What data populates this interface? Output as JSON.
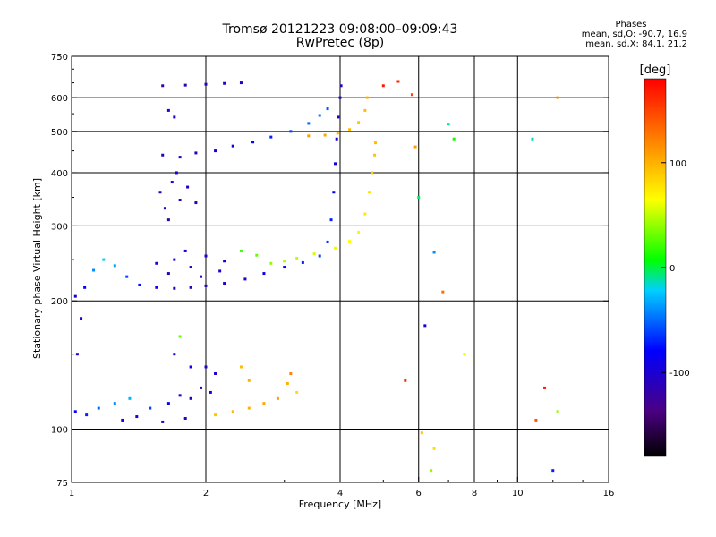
{
  "title": "Tromsø 20121223 09:08:00–09:09:43",
  "subtitle": "RwPretec (8p)",
  "phase_box": {
    "heading": "Phases",
    "line1": "mean, sd,O: -90.7, 16.9",
    "line2": "mean, sd,X:  84.1, 21.2"
  },
  "colorbar": {
    "unit": "[deg]",
    "ticks": [
      {
        "value": 100,
        "label": "100"
      },
      {
        "value": 0,
        "label": "0"
      },
      {
        "value": -100,
        "label": "-100"
      }
    ],
    "range": [
      -180,
      180
    ]
  },
  "chart_data": {
    "type": "scatter",
    "title": "Tromsø 20121223 09:08:00–09:09:43",
    "xlabel": "Frequency [MHz]",
    "ylabel": "Stationary phase Virtual Height [km]",
    "xscale": "log",
    "xlim": [
      1,
      16
    ],
    "ylim": [
      75,
      750
    ],
    "x_ticks": [
      {
        "value": 1,
        "label": "1"
      },
      {
        "value": 2,
        "label": "2"
      },
      {
        "value": 4,
        "label": "4"
      },
      {
        "value": 6,
        "label": "6"
      },
      {
        "value": 8,
        "label": "8"
      },
      {
        "value": 10,
        "label": "10"
      },
      {
        "value": 16,
        "label": "16"
      }
    ],
    "x_gridlines": [
      2,
      4,
      6,
      8,
      10
    ],
    "y_ticks": [
      {
        "value": 75,
        "label": "75"
      },
      {
        "value": 100,
        "label": "100"
      },
      {
        "value": 200,
        "label": "200"
      },
      {
        "value": 300,
        "label": "300"
      },
      {
        "value": 400,
        "label": "400"
      },
      {
        "value": 500,
        "label": "500"
      },
      {
        "value": 600,
        "label": "600"
      },
      {
        "value": 750,
        "label": "750"
      }
    ],
    "y_gridlines": [
      100,
      200,
      300,
      400,
      500,
      600
    ],
    "grid": true,
    "color_by": "phase [deg]",
    "series": [
      {
        "values": [
          [
            1.02,
            205,
            -95
          ],
          [
            1.05,
            182,
            -90
          ],
          [
            1.03,
            150,
            -100
          ],
          [
            1.07,
            215,
            -80
          ],
          [
            1.12,
            236,
            -40
          ],
          [
            1.18,
            250,
            -20
          ],
          [
            1.25,
            242,
            -35
          ],
          [
            1.33,
            228,
            -60
          ],
          [
            1.42,
            218,
            -75
          ],
          [
            1.55,
            215,
            -90
          ],
          [
            1.7,
            214,
            -100
          ],
          [
            1.85,
            215,
            -110
          ],
          [
            2.0,
            217,
            -110
          ],
          [
            2.2,
            220,
            -105
          ],
          [
            2.45,
            225,
            -100
          ],
          [
            2.7,
            232,
            -90
          ],
          [
            3.0,
            240,
            -80
          ],
          [
            3.3,
            246,
            -70
          ],
          [
            3.6,
            255,
            -60
          ],
          [
            3.75,
            275,
            -65
          ],
          [
            3.82,
            310,
            -70
          ],
          [
            3.87,
            360,
            -80
          ],
          [
            3.9,
            420,
            -90
          ],
          [
            3.93,
            480,
            -95
          ],
          [
            3.96,
            540,
            -100
          ],
          [
            4.0,
            600,
            -105
          ],
          [
            4.02,
            640,
            -110
          ],
          [
            1.55,
            245,
            -100
          ],
          [
            1.7,
            250,
            -95
          ],
          [
            1.85,
            240,
            -110
          ],
          [
            2.0,
            255,
            -100
          ],
          [
            2.2,
            248,
            -95
          ],
          [
            1.65,
            232,
            -110
          ],
          [
            1.95,
            228,
            -115
          ],
          [
            2.15,
            235,
            -105
          ],
          [
            1.8,
            262,
            -90
          ],
          [
            1.6,
            440,
            -105
          ],
          [
            1.75,
            435,
            -110
          ],
          [
            1.9,
            445,
            -100
          ],
          [
            2.1,
            450,
            -95
          ],
          [
            2.3,
            462,
            -90
          ],
          [
            2.55,
            472,
            -80
          ],
          [
            2.8,
            485,
            -70
          ],
          [
            3.1,
            500,
            -60
          ],
          [
            3.4,
            522,
            -50
          ],
          [
            3.6,
            545,
            -45
          ],
          [
            3.75,
            565,
            -55
          ],
          [
            1.58,
            360,
            -110
          ],
          [
            1.62,
            330,
            -115
          ],
          [
            1.68,
            380,
            -105
          ],
          [
            1.75,
            345,
            -110
          ],
          [
            1.82,
            370,
            -100
          ],
          [
            1.9,
            340,
            -110
          ],
          [
            1.72,
            400,
            -95
          ],
          [
            1.65,
            310,
            -120
          ],
          [
            1.6,
            640,
            -120
          ],
          [
            1.8,
            642,
            -115
          ],
          [
            2.0,
            645,
            -110
          ],
          [
            2.2,
            648,
            -105
          ],
          [
            2.4,
            650,
            -100
          ],
          [
            1.65,
            560,
            -100
          ],
          [
            1.7,
            540,
            -95
          ],
          [
            2.4,
            262,
            20
          ],
          [
            2.6,
            256,
            30
          ],
          [
            2.8,
            245,
            40
          ],
          [
            3.0,
            248,
            45
          ],
          [
            3.2,
            252,
            50
          ],
          [
            3.5,
            258,
            55
          ],
          [
            3.9,
            266,
            60
          ],
          [
            4.2,
            276,
            65
          ],
          [
            4.4,
            290,
            70
          ],
          [
            4.55,
            320,
            75
          ],
          [
            4.65,
            360,
            80
          ],
          [
            4.72,
            400,
            85
          ],
          [
            4.78,
            440,
            90
          ],
          [
            4.8,
            470,
            95
          ],
          [
            3.4,
            488,
            110
          ],
          [
            3.7,
            490,
            105
          ],
          [
            3.95,
            495,
            100
          ],
          [
            4.2,
            505,
            95
          ],
          [
            4.4,
            525,
            90
          ],
          [
            4.55,
            560,
            95
          ],
          [
            4.6,
            600,
            100
          ],
          [
            1.02,
            110,
            -80
          ],
          [
            1.08,
            108,
            -70
          ],
          [
            1.15,
            112,
            -50
          ],
          [
            1.25,
            115,
            -40
          ],
          [
            1.35,
            118,
            -30
          ],
          [
            1.5,
            112,
            -60
          ],
          [
            1.65,
            115,
            -90
          ],
          [
            1.75,
            120,
            -100
          ],
          [
            1.85,
            118,
            -110
          ],
          [
            1.95,
            125,
            -105
          ],
          [
            2.05,
            122,
            -95
          ],
          [
            1.3,
            105,
            -90
          ],
          [
            1.4,
            107,
            -100
          ],
          [
            1.6,
            104,
            -110
          ],
          [
            1.8,
            106,
            -110
          ],
          [
            1.7,
            150,
            -100
          ],
          [
            1.75,
            165,
            30
          ],
          [
            1.85,
            140,
            -90
          ],
          [
            2.0,
            140,
            -110
          ],
          [
            2.1,
            135,
            -100
          ],
          [
            2.1,
            108,
            90
          ],
          [
            2.3,
            110,
            95
          ],
          [
            2.5,
            112,
            100
          ],
          [
            2.7,
            115,
            105
          ],
          [
            2.9,
            118,
            110
          ],
          [
            3.05,
            128,
            100
          ],
          [
            3.2,
            122,
            80
          ],
          [
            3.1,
            135,
            120
          ],
          [
            2.5,
            130,
            100
          ],
          [
            2.4,
            140,
            95
          ],
          [
            5.0,
            640,
            170
          ],
          [
            5.4,
            655,
            165
          ],
          [
            5.8,
            610,
            150
          ],
          [
            5.9,
            460,
            110
          ],
          [
            6.0,
            350,
            -5
          ],
          [
            6.2,
            175,
            -100
          ],
          [
            5.6,
            130,
            160
          ],
          [
            6.1,
            98,
            90
          ],
          [
            6.4,
            80,
            40
          ],
          [
            6.5,
            90,
            80
          ],
          [
            7.2,
            480,
            10
          ],
          [
            7.6,
            150,
            60
          ],
          [
            7.0,
            520,
            -10
          ],
          [
            11.5,
            125,
            170
          ],
          [
            12.3,
            110,
            40
          ],
          [
            12.0,
            80,
            -70
          ],
          [
            11.0,
            105,
            140
          ],
          [
            10.8,
            480,
            -15
          ],
          [
            12.3,
            600,
            120
          ],
          [
            6.8,
            210,
            130
          ],
          [
            6.5,
            260,
            -40
          ]
        ]
      }
    ]
  }
}
